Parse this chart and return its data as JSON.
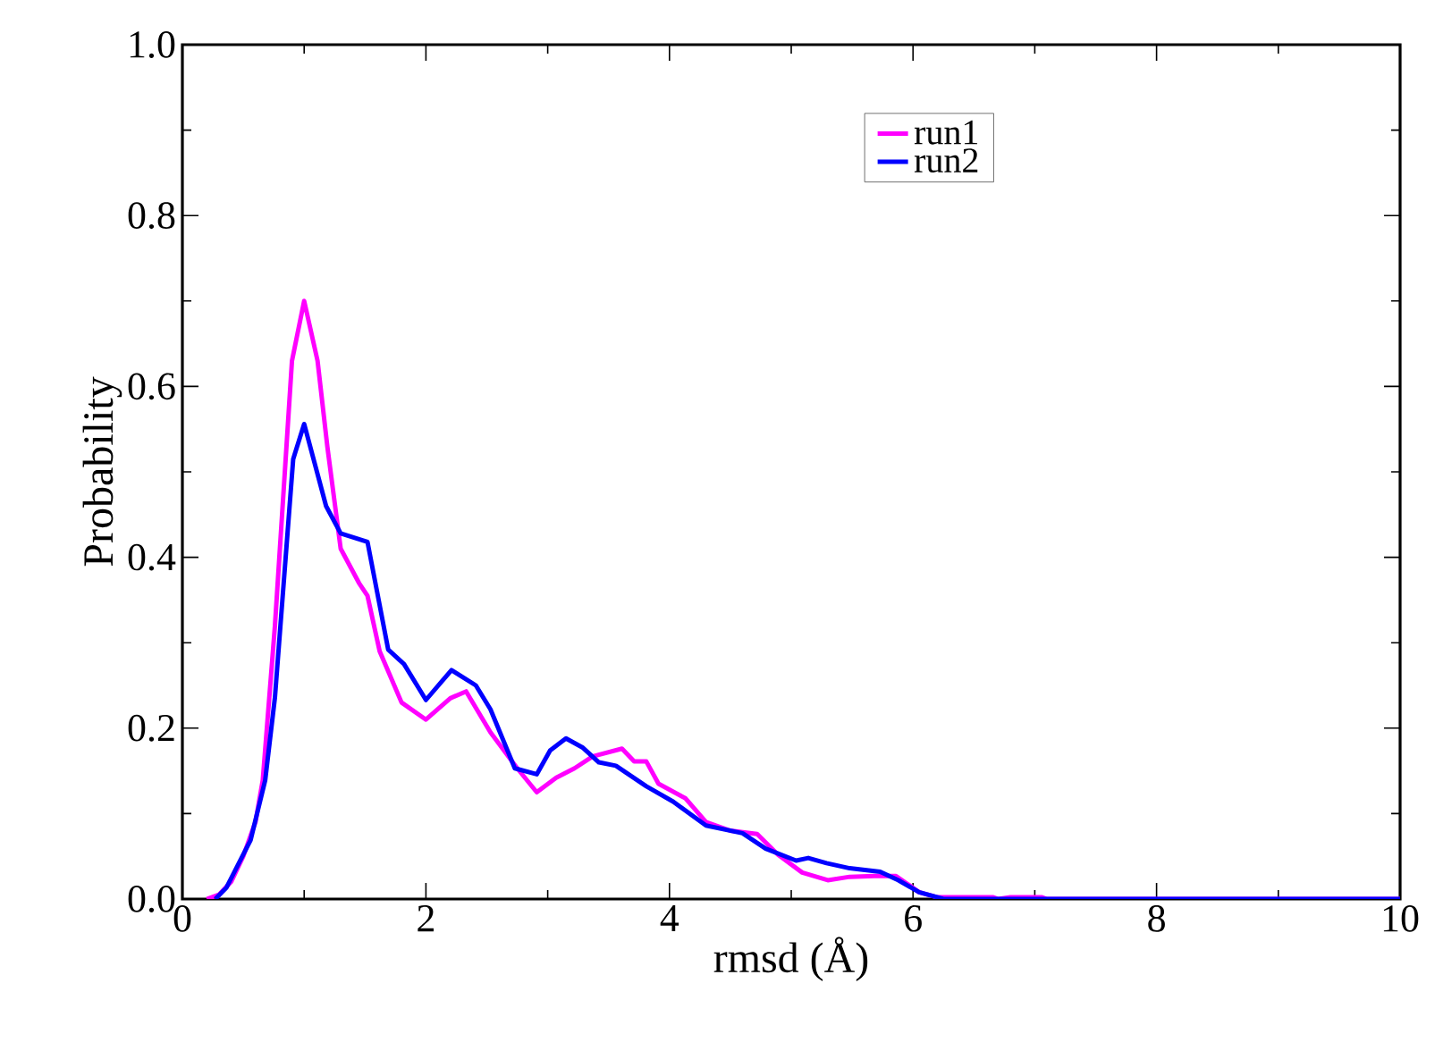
{
  "chart_data": {
    "type": "line",
    "xlabel": "rmsd (Å)",
    "ylabel": "Probability",
    "xlim": [
      0,
      10
    ],
    "ylim": [
      0,
      1
    ],
    "xticks": [
      0,
      2,
      4,
      6,
      8,
      10
    ],
    "yticks": [
      {
        "value": 0,
        "label": "0.0"
      },
      {
        "value": 0.2,
        "label": "0.2"
      },
      {
        "value": 0.4,
        "label": "0.4"
      },
      {
        "value": 0.6,
        "label": "0.6"
      },
      {
        "value": 0.8,
        "label": "0.8"
      },
      {
        "value": 1,
        "label": "1.0"
      }
    ],
    "grid": false,
    "legend": "top right",
    "marker": "none",
    "line_style": "solid",
    "series": [
      {
        "name": "run1",
        "color": "#ff00ff",
        "x": [
          0.2,
          0.3,
          0.4,
          0.5,
          0.6,
          0.66,
          0.76,
          0.9,
          1.0,
          1.11,
          1.19,
          1.3,
          1.45,
          1.52,
          1.62,
          1.8,
          2.0,
          2.2,
          2.33,
          2.53,
          2.75,
          2.91,
          3.07,
          3.22,
          3.37,
          3.61,
          3.71,
          3.81,
          3.91,
          4.13,
          4.3,
          4.5,
          4.72,
          4.89,
          5.09,
          5.3,
          5.48,
          5.68,
          5.86,
          6.05,
          6.2,
          6.3,
          6.66,
          6.7,
          6.8,
          7.06,
          7.1,
          10
        ],
        "values": [
          0,
          0.005,
          0.02,
          0.05,
          0.09,
          0.139,
          0.32,
          0.63,
          0.7,
          0.63,
          0.53,
          0.41,
          0.37,
          0.355,
          0.29,
          0.23,
          0.21,
          0.235,
          0.243,
          0.195,
          0.153,
          0.125,
          0.142,
          0.153,
          0.167,
          0.176,
          0.161,
          0.161,
          0.135,
          0.118,
          0.09,
          0.08,
          0.076,
          0.052,
          0.031,
          0.022,
          0.026,
          0.027,
          0.027,
          0.008,
          0.002,
          0.002,
          0.002,
          0,
          0.002,
          0.002,
          0,
          0
        ]
      },
      {
        "name": "run2",
        "color": "#0000ff",
        "x": [
          0.27,
          0.36,
          0.56,
          0.68,
          0.76,
          0.91,
          1.0,
          1.18,
          1.3,
          1.52,
          1.69,
          1.82,
          2.0,
          2.21,
          2.41,
          2.53,
          2.73,
          2.91,
          3.02,
          3.15,
          3.29,
          3.42,
          3.56,
          3.81,
          4.03,
          4.3,
          4.6,
          4.79,
          5.04,
          5.14,
          5.29,
          5.48,
          5.73,
          5.88,
          6.05,
          6.25,
          10
        ],
        "values": [
          0,
          0.013,
          0.069,
          0.139,
          0.236,
          0.515,
          0.556,
          0.46,
          0.428,
          0.418,
          0.292,
          0.275,
          0.233,
          0.268,
          0.25,
          0.222,
          0.153,
          0.146,
          0.174,
          0.188,
          0.177,
          0.16,
          0.156,
          0.132,
          0.114,
          0.086,
          0.077,
          0.059,
          0.045,
          0.048,
          0.042,
          0.036,
          0.032,
          0.022,
          0.008,
          0,
          0
        ]
      }
    ]
  }
}
